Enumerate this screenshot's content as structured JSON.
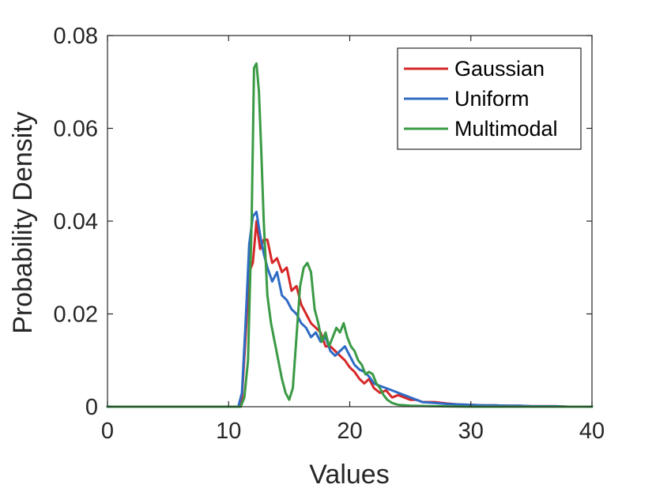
{
  "chart_data": {
    "type": "line",
    "title": "",
    "xlabel": "Values",
    "ylabel": "Probability Density",
    "xlim": [
      0,
      40
    ],
    "ylim": [
      0,
      0.08
    ],
    "xticks": [
      0,
      10,
      20,
      30,
      40
    ],
    "xtick_labels": [
      "0",
      "10",
      "20",
      "30",
      "40"
    ],
    "yticks": [
      0,
      0.02,
      0.04,
      0.06,
      0.08
    ],
    "ytick_labels": [
      "0",
      "0.02",
      "0.04",
      "0.06",
      "0.08"
    ],
    "grid": false,
    "legend_position": "top-right",
    "series": [
      {
        "name": "Gaussian",
        "color": "#d62728",
        "x": [
          0,
          10.8,
          11.1,
          11.4,
          11.7,
          12.0,
          12.3,
          12.6,
          12.9,
          13.2,
          13.6,
          14.0,
          14.4,
          14.8,
          15.2,
          15.6,
          16.0,
          16.4,
          16.8,
          17.2,
          17.6,
          18.0,
          18.4,
          18.8,
          19.2,
          19.6,
          20.0,
          20.4,
          20.8,
          21.2,
          21.6,
          22.0,
          22.5,
          23.0,
          23.5,
          24.0,
          24.5,
          25.0,
          25.5,
          26.0,
          27.0,
          28.0,
          29.0,
          30.0,
          31.0,
          32.0,
          33.0,
          34.0,
          35.0,
          36.0,
          37.0,
          38.0,
          39.0,
          40.0
        ],
        "y": [
          0,
          0,
          0.002,
          0.015,
          0.029,
          0.031,
          0.04,
          0.034,
          0.036,
          0.036,
          0.031,
          0.032,
          0.029,
          0.03,
          0.025,
          0.026,
          0.022,
          0.02,
          0.018,
          0.017,
          0.016,
          0.013,
          0.013,
          0.012,
          0.011,
          0.01,
          0.0085,
          0.0075,
          0.006,
          0.005,
          0.006,
          0.004,
          0.003,
          0.0035,
          0.002,
          0.0025,
          0.002,
          0.0015,
          0.0015,
          0.001,
          0.001,
          0.0007,
          0.0005,
          0.0004,
          0.0003,
          0.0003,
          0.0002,
          0.0002,
          0.0001,
          0.0001,
          0.0001,
          0,
          0,
          0
        ]
      },
      {
        "name": "Uniform",
        "color": "#2e6bc4",
        "x": [
          0,
          10.8,
          11.1,
          11.4,
          11.7,
          12.0,
          12.3,
          12.6,
          12.9,
          13.2,
          13.6,
          14.0,
          14.4,
          14.8,
          15.2,
          15.6,
          16.0,
          16.4,
          16.8,
          17.2,
          17.6,
          18.0,
          18.4,
          18.8,
          19.2,
          19.6,
          20.0,
          20.4,
          20.8,
          21.2,
          21.6,
          22.0,
          22.5,
          23.0,
          23.5,
          24.0,
          24.5,
          25.0,
          25.5,
          26.0,
          27.0,
          28.0,
          29.0,
          30.0,
          31.0,
          32.0,
          33.0,
          34.0,
          35.0,
          36.0,
          37.0,
          38.0,
          39.0,
          40.0
        ],
        "y": [
          0,
          0,
          0.003,
          0.018,
          0.035,
          0.041,
          0.042,
          0.037,
          0.033,
          0.03,
          0.027,
          0.029,
          0.024,
          0.023,
          0.021,
          0.02,
          0.018,
          0.017,
          0.015,
          0.016,
          0.014,
          0.015,
          0.012,
          0.011,
          0.012,
          0.013,
          0.011,
          0.009,
          0.008,
          0.0075,
          0.0065,
          0.005,
          0.0045,
          0.004,
          0.0035,
          0.003,
          0.0025,
          0.002,
          0.0015,
          0.001,
          0.0008,
          0.0006,
          0.0005,
          0.0004,
          0.0003,
          0.0003,
          0.0002,
          0.0002,
          0.0001,
          0.0001,
          0.0001,
          0,
          0,
          0
        ]
      },
      {
        "name": "Multimodal",
        "color": "#3a9a45",
        "x": [
          0,
          11.0,
          11.3,
          11.6,
          11.9,
          12.1,
          12.3,
          12.5,
          12.7,
          12.9,
          13.2,
          13.5,
          13.8,
          14.1,
          14.4,
          14.7,
          15.0,
          15.3,
          15.6,
          15.9,
          16.2,
          16.5,
          16.8,
          17.1,
          17.4,
          17.7,
          18.0,
          18.3,
          18.6,
          18.9,
          19.2,
          19.5,
          19.8,
          20.1,
          20.4,
          20.7,
          21.0,
          21.3,
          21.6,
          21.9,
          22.2,
          22.5,
          22.8,
          23.1,
          23.5,
          24.0,
          25.0,
          27.0,
          30.0,
          35.0,
          40.0
        ],
        "y": [
          0,
          0,
          0.002,
          0.01,
          0.04,
          0.073,
          0.074,
          0.068,
          0.055,
          0.04,
          0.024,
          0.018,
          0.014,
          0.01,
          0.006,
          0.003,
          0.0015,
          0.004,
          0.015,
          0.026,
          0.03,
          0.031,
          0.029,
          0.021,
          0.018,
          0.014,
          0.016,
          0.013,
          0.015,
          0.017,
          0.016,
          0.018,
          0.015,
          0.013,
          0.012,
          0.01,
          0.009,
          0.007,
          0.0075,
          0.007,
          0.005,
          0.004,
          0.0025,
          0.0015,
          0.0008,
          0.0004,
          0.0002,
          0.0001,
          0,
          0,
          0
        ]
      }
    ]
  }
}
